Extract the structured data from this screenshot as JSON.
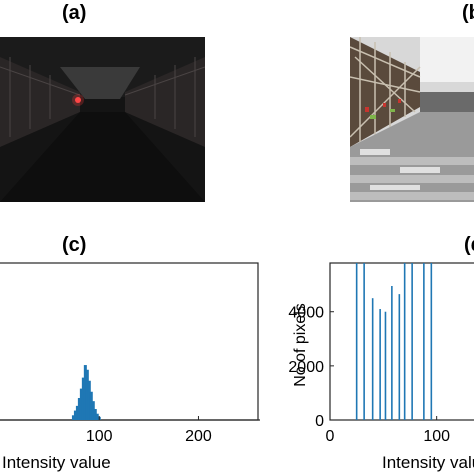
{
  "panels": {
    "a": {
      "label": "(a)"
    },
    "b": {
      "label": "(b)"
    },
    "c": {
      "label": "(c)"
    },
    "d": {
      "label": "(d)"
    }
  },
  "chart_data": [
    {
      "type": "bar",
      "panel": "(c)",
      "xlabel": "Intensity value",
      "ylabel": "",
      "xlim": [
        0,
        260
      ],
      "xticks": [
        100,
        200
      ],
      "note": "histogram of a dark image; small blue mound around intensity 80-100",
      "x": [
        74,
        76,
        78,
        80,
        82,
        84,
        86,
        88,
        90,
        92,
        94,
        96,
        98,
        100
      ],
      "values": [
        0.03,
        0.06,
        0.09,
        0.14,
        0.2,
        0.27,
        0.35,
        0.32,
        0.25,
        0.18,
        0.12,
        0.07,
        0.04,
        0.02
      ],
      "color": "#1f77b4"
    },
    {
      "type": "bar",
      "panel": "(d)",
      "xlabel": "Intensity value",
      "ylabel": "No of pixels",
      "xlim": [
        0,
        150
      ],
      "ylim": [
        0,
        5800
      ],
      "xticks": [
        0,
        100
      ],
      "yticks": [
        0,
        2000,
        4000
      ],
      "x": [
        25,
        32,
        40,
        47,
        52,
        58,
        65,
        70,
        77,
        88,
        95
      ],
      "values": [
        5800,
        5800,
        4500,
        4100,
        4000,
        4950,
        4650,
        5800,
        5800,
        5800,
        5800
      ],
      "color": "#1f77b4"
    }
  ]
}
